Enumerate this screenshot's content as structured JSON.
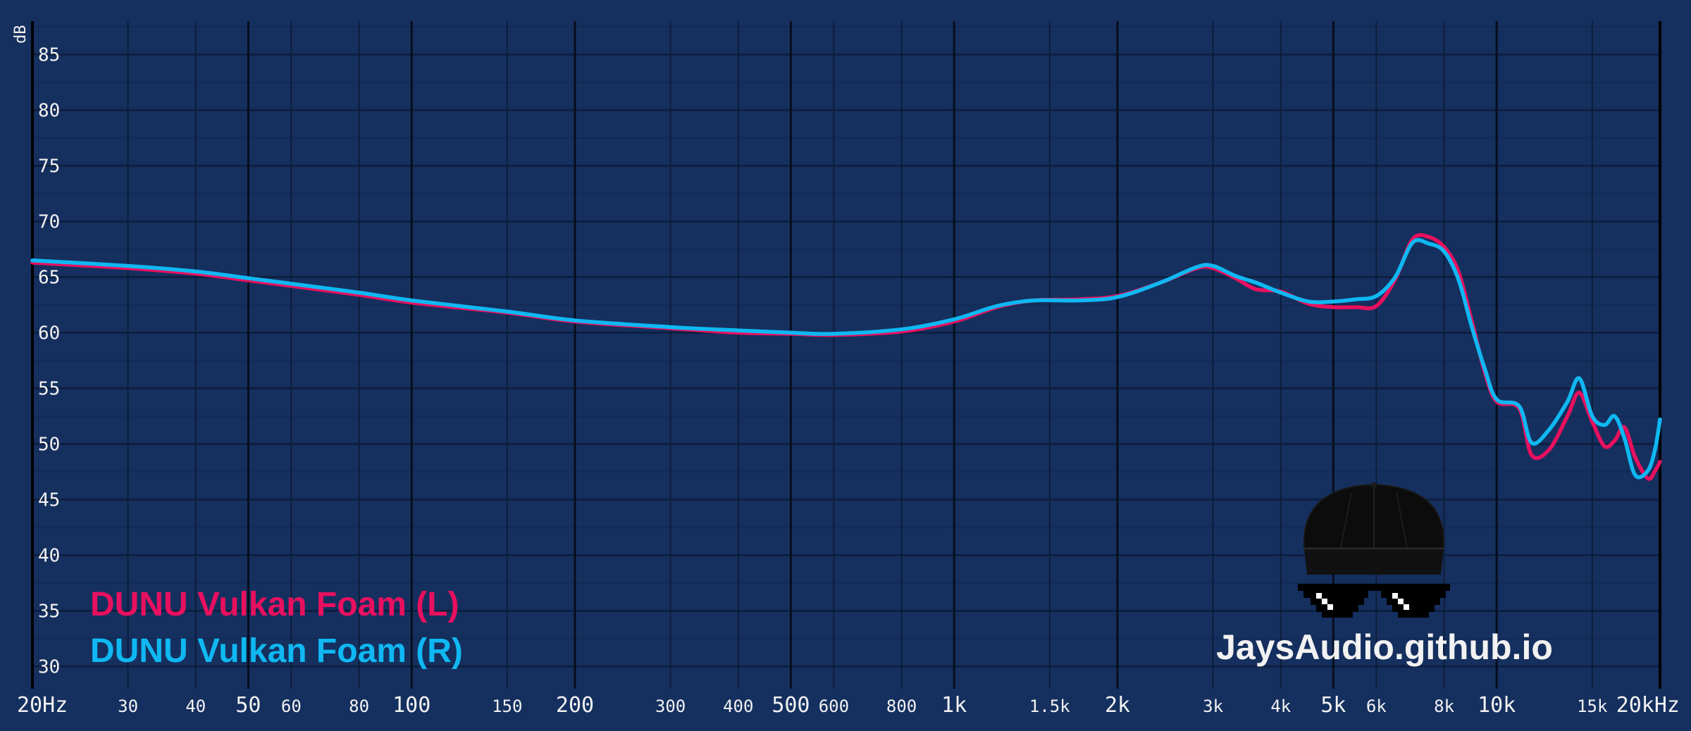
{
  "chart_data": {
    "type": "line",
    "x_scale": "log",
    "xlim": [
      20,
      20000
    ],
    "ylim": [
      28,
      88
    ],
    "ylabel": "dB",
    "y_ticks": [
      30,
      35,
      40,
      45,
      50,
      55,
      60,
      65,
      70,
      75,
      80,
      85
    ],
    "x_ticks": [
      {
        "value": 20,
        "label": "20Hz",
        "major": true
      },
      {
        "value": 30,
        "label": "30",
        "major": false
      },
      {
        "value": 40,
        "label": "40",
        "major": false
      },
      {
        "value": 50,
        "label": "50",
        "major": true
      },
      {
        "value": 60,
        "label": "60",
        "major": false
      },
      {
        "value": 80,
        "label": "80",
        "major": false
      },
      {
        "value": 100,
        "label": "100",
        "major": true
      },
      {
        "value": 150,
        "label": "150",
        "major": false
      },
      {
        "value": 200,
        "label": "200",
        "major": true
      },
      {
        "value": 300,
        "label": "300",
        "major": false
      },
      {
        "value": 400,
        "label": "400",
        "major": false
      },
      {
        "value": 500,
        "label": "500",
        "major": true
      },
      {
        "value": 600,
        "label": "600",
        "major": false
      },
      {
        "value": 800,
        "label": "800",
        "major": false
      },
      {
        "value": 1000,
        "label": "1k",
        "major": true
      },
      {
        "value": 1500,
        "label": "1.5k",
        "major": false
      },
      {
        "value": 2000,
        "label": "2k",
        "major": true
      },
      {
        "value": 3000,
        "label": "3k",
        "major": false
      },
      {
        "value": 4000,
        "label": "4k",
        "major": false
      },
      {
        "value": 5000,
        "label": "5k",
        "major": true
      },
      {
        "value": 6000,
        "label": "6k",
        "major": false
      },
      {
        "value": 8000,
        "label": "8k",
        "major": false
      },
      {
        "value": 10000,
        "label": "10k",
        "major": true
      },
      {
        "value": 15000,
        "label": "15k",
        "major": false
      },
      {
        "value": 20000,
        "label": "20kHz",
        "major": true
      }
    ],
    "grid": true,
    "legend_position": "bottom-left",
    "series": [
      {
        "name": "DUNU Vulkan Foam (L)",
        "color": "#e8105f",
        "points": [
          [
            20,
            66.3
          ],
          [
            30,
            65.8
          ],
          [
            40,
            65.3
          ],
          [
            50,
            64.7
          ],
          [
            60,
            64.2
          ],
          [
            80,
            63.4
          ],
          [
            100,
            62.7
          ],
          [
            150,
            61.8
          ],
          [
            200,
            61.0
          ],
          [
            300,
            60.4
          ],
          [
            400,
            60.0
          ],
          [
            500,
            59.9
          ],
          [
            600,
            59.8
          ],
          [
            800,
            60.1
          ],
          [
            1000,
            61.0
          ],
          [
            1200,
            62.3
          ],
          [
            1400,
            62.9
          ],
          [
            1700,
            63.0
          ],
          [
            2000,
            63.3
          ],
          [
            2400,
            64.5
          ],
          [
            2800,
            65.8
          ],
          [
            3000,
            65.8
          ],
          [
            3300,
            64.9
          ],
          [
            3600,
            63.9
          ],
          [
            4000,
            63.7
          ],
          [
            4500,
            62.6
          ],
          [
            5000,
            62.3
          ],
          [
            5500,
            62.3
          ],
          [
            6000,
            62.4
          ],
          [
            6500,
            64.8
          ],
          [
            7000,
            68.4
          ],
          [
            7500,
            68.6
          ],
          [
            8000,
            67.7
          ],
          [
            8500,
            65.5
          ],
          [
            9000,
            61.0
          ],
          [
            9500,
            56.5
          ],
          [
            10000,
            53.8
          ],
          [
            11000,
            53.2
          ],
          [
            11600,
            49.0
          ],
          [
            12500,
            49.5
          ],
          [
            13500,
            52.5
          ],
          [
            14200,
            54.6
          ],
          [
            15000,
            52.0
          ],
          [
            15800,
            49.8
          ],
          [
            16500,
            50.3
          ],
          [
            17200,
            51.5
          ],
          [
            18000,
            48.8
          ],
          [
            19000,
            46.9
          ],
          [
            19600,
            47.6
          ],
          [
            20000,
            48.4
          ]
        ]
      },
      {
        "name": "DUNU Vulkan Foam (R)",
        "color": "#0fb8f2",
        "points": [
          [
            20,
            66.5
          ],
          [
            30,
            66.0
          ],
          [
            40,
            65.5
          ],
          [
            50,
            64.9
          ],
          [
            60,
            64.4
          ],
          [
            80,
            63.6
          ],
          [
            100,
            62.9
          ],
          [
            150,
            61.9
          ],
          [
            200,
            61.1
          ],
          [
            300,
            60.5
          ],
          [
            400,
            60.2
          ],
          [
            500,
            60.0
          ],
          [
            600,
            59.9
          ],
          [
            800,
            60.3
          ],
          [
            1000,
            61.2
          ],
          [
            1200,
            62.4
          ],
          [
            1400,
            62.9
          ],
          [
            1700,
            62.9
          ],
          [
            2000,
            63.2
          ],
          [
            2400,
            64.5
          ],
          [
            2800,
            65.9
          ],
          [
            3000,
            66.0
          ],
          [
            3300,
            65.1
          ],
          [
            3600,
            64.5
          ],
          [
            4000,
            63.6
          ],
          [
            4500,
            62.8
          ],
          [
            5000,
            62.8
          ],
          [
            5500,
            63.0
          ],
          [
            6000,
            63.3
          ],
          [
            6500,
            65.0
          ],
          [
            7000,
            68.1
          ],
          [
            7500,
            68.0
          ],
          [
            8000,
            67.3
          ],
          [
            8500,
            64.8
          ],
          [
            9000,
            60.5
          ],
          [
            9500,
            56.8
          ],
          [
            10000,
            54.0
          ],
          [
            11000,
            53.4
          ],
          [
            11600,
            50.1
          ],
          [
            12500,
            51.3
          ],
          [
            13500,
            53.8
          ],
          [
            14200,
            55.9
          ],
          [
            15000,
            52.5
          ],
          [
            15800,
            51.7
          ],
          [
            16500,
            52.5
          ],
          [
            17200,
            50.5
          ],
          [
            18000,
            47.2
          ],
          [
            19000,
            47.6
          ],
          [
            19600,
            49.6
          ],
          [
            20000,
            52.2
          ]
        ]
      }
    ]
  },
  "legend": {
    "left_label": "DUNU Vulkan Foam (L)",
    "right_label": "DUNU Vulkan Foam (R)"
  },
  "watermark": {
    "text": "JaysAudio.github.io",
    "logo_icon": "cap-and-pixel-sunglasses-icon"
  },
  "colors": {
    "background": "#15305f",
    "major_grid": "#0a0f1f",
    "minor_grid": "#0e1e3e",
    "text": "#f2f2f2"
  }
}
